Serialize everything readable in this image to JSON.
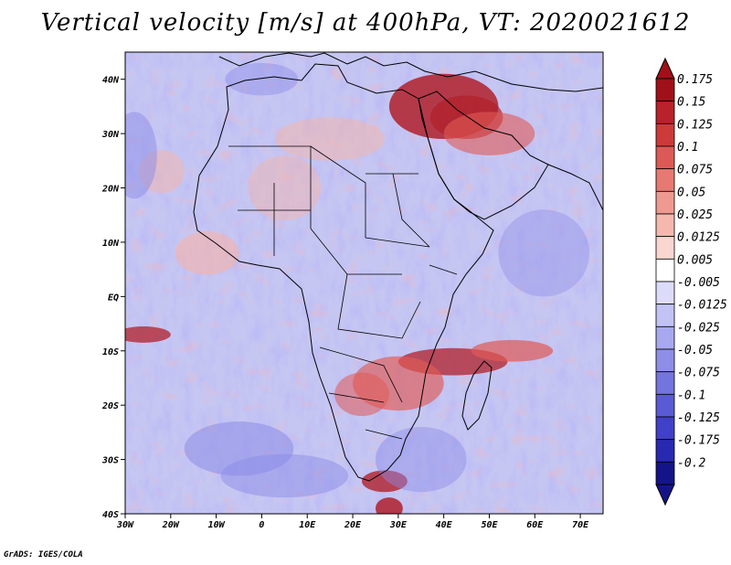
{
  "title": "Vertical velocity [m/s] at 400hPa, VT: 2020021612",
  "credit": "GrADS: IGES/COLA",
  "map": {
    "lon_ticks": [
      "30W",
      "20W",
      "10W",
      "0",
      "10E",
      "20E",
      "30E",
      "40E",
      "50E",
      "60E",
      "70E"
    ],
    "lat_ticks": [
      "40N",
      "30N",
      "20N",
      "10N",
      "EQ",
      "10S",
      "20S",
      "30S",
      "40S"
    ],
    "lon_range": [
      -30,
      75
    ],
    "lat_range": [
      -40,
      45
    ],
    "colors": {
      "sink_strong": "#b0202a",
      "sink_mid": "#e05a55",
      "sink_weak": "#f6b3a8",
      "neutral": "#ffffff",
      "rise_weak": "#c8c8f4",
      "rise_mid": "#8c8ce8",
      "rise_strong": "#3f3fcf",
      "coast_line": "#000000"
    }
  },
  "colorbar": {
    "labels": [
      "0.175",
      "0.15",
      "0.125",
      "0.1",
      "0.075",
      "0.05",
      "0.025",
      "0.0125",
      "0.005",
      "-0.005",
      "-0.0125",
      "-0.025",
      "-0.05",
      "-0.075",
      "-0.1",
      "-0.125",
      "-0.175",
      "-0.2"
    ],
    "colors": [
      "#a01018",
      "#b8222a",
      "#cc3a3a",
      "#dc5a55",
      "#e67a72",
      "#ef9a90",
      "#f5b8ae",
      "#fad6d0",
      "#ffffff",
      "#dcdcfa",
      "#c2c2f4",
      "#a8a8ee",
      "#8e8ee6",
      "#7474de",
      "#5a5ad4",
      "#4040c8",
      "#2828b0",
      "#141488"
    ]
  }
}
